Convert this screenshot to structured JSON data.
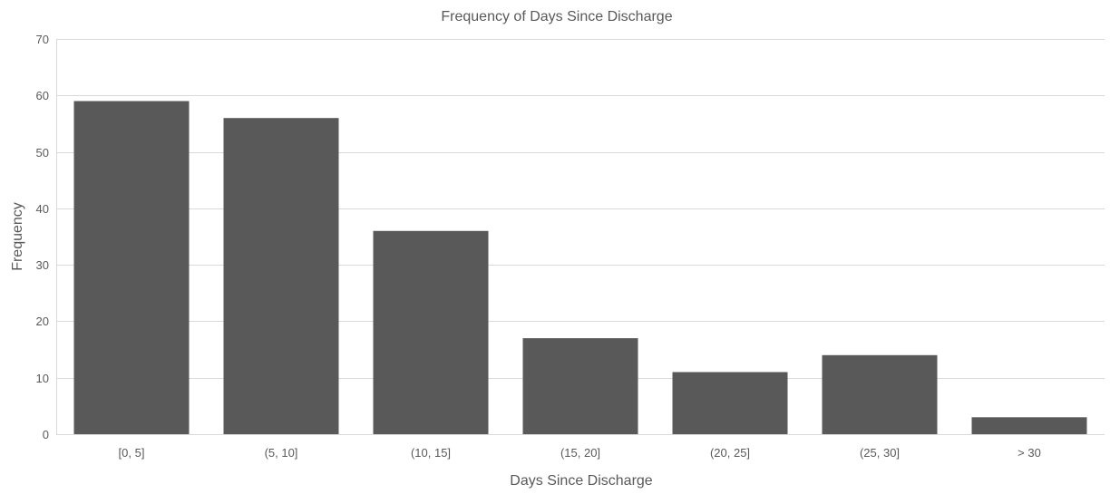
{
  "chart_data": {
    "type": "bar",
    "title": "Frequency of Days Since Discharge",
    "xlabel": "Days Since Discharge",
    "ylabel": "Frequency",
    "categories": [
      "[0, 5]",
      "(5, 10]",
      "(10, 15]",
      "(15, 20]",
      "(20, 25]",
      "(25, 30]",
      "> 30"
    ],
    "values": [
      59,
      56,
      36,
      17,
      11,
      14,
      3
    ],
    "ylim": [
      0,
      70
    ],
    "yticks": [
      0,
      10,
      20,
      30,
      40,
      50,
      60,
      70
    ],
    "grid": true,
    "legend": "none",
    "bar_color": "#595959"
  }
}
